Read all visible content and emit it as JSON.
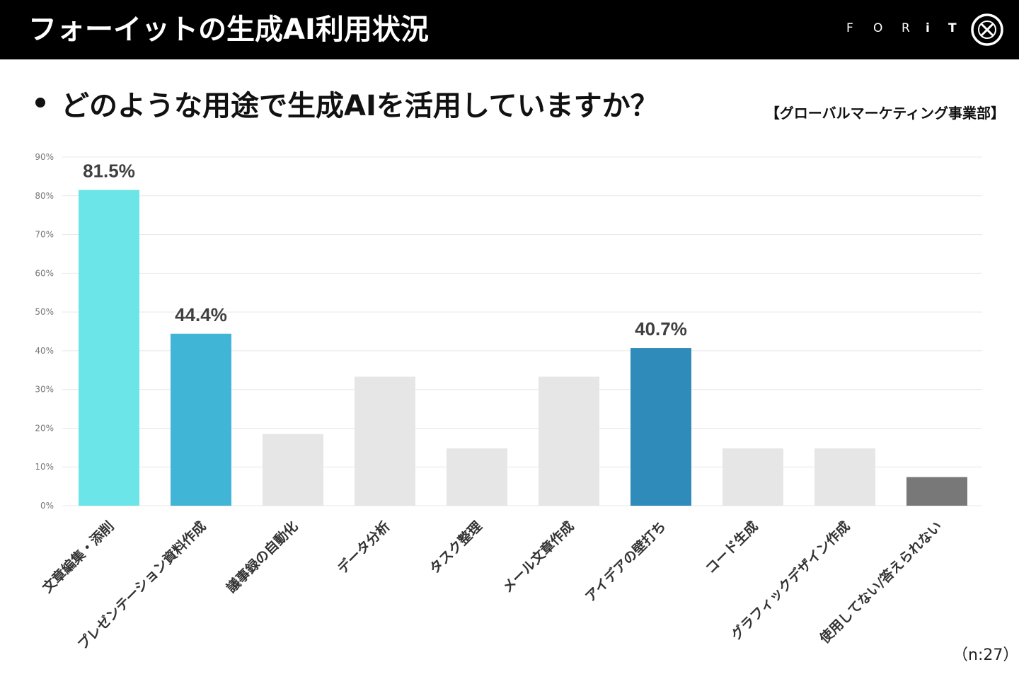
{
  "header": {
    "title": "フォーイットの生成AI利用状況",
    "brand": [
      "F",
      "O",
      "R",
      "i",
      "T"
    ]
  },
  "subtitle": {
    "question": "どのような用途で生成AIを活用していますか？",
    "department": "【グローバルマーケティング事業部】"
  },
  "colors": {
    "header_bg": "#000000",
    "bar_highlight_1": "#6BE5E8",
    "bar_highlight_2": "#40B5D5",
    "bar_highlight_3": "#2F8BBA",
    "bar_default": "#E6E6E6",
    "bar_none": "#787878",
    "grid": "#E8E8E8"
  },
  "chart_data": {
    "type": "bar",
    "title": "",
    "xlabel": "",
    "ylabel": "",
    "ylim": [
      0,
      90
    ],
    "yticks": [
      0,
      10,
      20,
      30,
      40,
      50,
      60,
      70,
      80,
      90
    ],
    "ytick_labels": [
      "0%",
      "10%",
      "20%",
      "30%",
      "40%",
      "50%",
      "60%",
      "70%",
      "80%",
      "90%"
    ],
    "grid": true,
    "categories": [
      "文章編集・添削",
      "プレゼンテーション資料作成",
      "議事録の自動化",
      "データ分析",
      "タスク整理",
      "メール文章作成",
      "アイデアの壁打ち",
      "コード生成",
      "グラフィックデザイン作成",
      "使用してない/答えられない"
    ],
    "values": [
      81.5,
      44.4,
      18.5,
      33.3,
      14.8,
      33.3,
      40.7,
      14.8,
      14.8,
      7.4
    ],
    "bar_colors": [
      "#6BE5E8",
      "#40B5D5",
      "#E6E6E6",
      "#E6E6E6",
      "#E6E6E6",
      "#E6E6E6",
      "#2F8BBA",
      "#E6E6E6",
      "#E6E6E6",
      "#787878"
    ],
    "data_labels": [
      "81.5%",
      "44.4%",
      null,
      null,
      null,
      null,
      "40.7%",
      null,
      null,
      null
    ]
  },
  "sample_size": "（n:27）"
}
